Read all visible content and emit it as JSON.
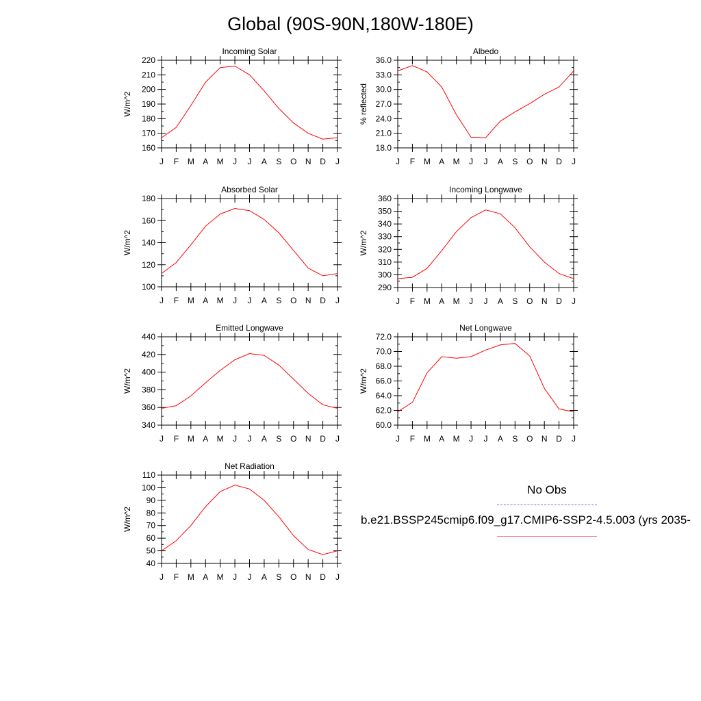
{
  "page_title": "Global (90S-90N,180W-180E)",
  "legend": {
    "title": "No Obs",
    "model_label": "b.e21.BSSP245cmip6.f09_g17.CMIP6-SSP2-4.5.003 (yrs 2035-"
  },
  "colors": {
    "series": "#ff0000",
    "obs": "#7070e0",
    "model_legend": "#f08080"
  },
  "months": [
    "J",
    "F",
    "M",
    "A",
    "M",
    "J",
    "J",
    "A",
    "S",
    "O",
    "N",
    "D",
    "J"
  ],
  "chart_data": [
    {
      "type": "line",
      "title": "Incoming Solar",
      "ylabel": "W/m^2",
      "x": [
        "J",
        "F",
        "M",
        "A",
        "M",
        "J",
        "J",
        "A",
        "S",
        "O",
        "N",
        "D",
        "J"
      ],
      "ylim": [
        160,
        220
      ],
      "yticks": [
        "160",
        "170",
        "180",
        "190",
        "200",
        "210",
        "220"
      ],
      "series": [
        {
          "values": [
            167,
            174,
            189,
            205,
            215,
            216,
            210,
            199,
            187,
            177,
            170,
            166,
            167
          ]
        }
      ]
    },
    {
      "type": "line",
      "title": "Albedo",
      "ylabel": "% reflected",
      "x": [
        "J",
        "F",
        "M",
        "A",
        "M",
        "J",
        "J",
        "A",
        "S",
        "O",
        "N",
        "D",
        "J"
      ],
      "ylim": [
        18,
        36
      ],
      "yticks": [
        "18.0",
        "21.0",
        "24.0",
        "27.0",
        "30.0",
        "33.0",
        "36.0"
      ],
      "series": [
        {
          "values": [
            33.8,
            34.9,
            33.6,
            30.5,
            24.8,
            20.2,
            20.1,
            23.5,
            25.4,
            27.1,
            29.0,
            30.5,
            33.8
          ]
        }
      ]
    },
    {
      "type": "line",
      "title": "Absorbed Solar",
      "ylabel": "W/m^2",
      "x": [
        "J",
        "F",
        "M",
        "A",
        "M",
        "J",
        "J",
        "A",
        "S",
        "O",
        "N",
        "D",
        "J"
      ],
      "ylim": [
        100,
        180
      ],
      "yticks": [
        "100",
        "120",
        "140",
        "160",
        "180"
      ],
      "series": [
        {
          "values": [
            112,
            122,
            138,
            155,
            166,
            171,
            169,
            161,
            149,
            133,
            117,
            110,
            112
          ]
        }
      ]
    },
    {
      "type": "line",
      "title": "Incoming Longwave",
      "ylabel": "W/m^2",
      "x": [
        "J",
        "F",
        "M",
        "A",
        "M",
        "J",
        "J",
        "A",
        "S",
        "O",
        "N",
        "D",
        "J"
      ],
      "ylim": [
        290,
        360
      ],
      "yticks": [
        "290",
        "300",
        "310",
        "320",
        "330",
        "340",
        "350",
        "360"
      ],
      "series": [
        {
          "values": [
            297,
            298,
            305,
            319,
            334,
            345,
            351,
            348,
            337,
            322,
            310,
            301,
            297
          ]
        }
      ]
    },
    {
      "type": "line",
      "title": "Emitted Longwave",
      "ylabel": "W/m^2",
      "x": [
        "J",
        "F",
        "M",
        "A",
        "M",
        "J",
        "J",
        "A",
        "S",
        "O",
        "N",
        "D",
        "J"
      ],
      "ylim": [
        340,
        440
      ],
      "yticks": [
        "340",
        "360",
        "380",
        "400",
        "420",
        "440"
      ],
      "series": [
        {
          "values": [
            359,
            362,
            373,
            388,
            402,
            414,
            421,
            419,
            408,
            392,
            376,
            363,
            359
          ]
        }
      ]
    },
    {
      "type": "line",
      "title": "Net Longwave",
      "ylabel": "W/m^2",
      "x": [
        "J",
        "F",
        "M",
        "A",
        "M",
        "J",
        "J",
        "A",
        "S",
        "O",
        "N",
        "D",
        "J"
      ],
      "ylim": [
        60,
        72
      ],
      "yticks": [
        "60.0",
        "62.0",
        "64.0",
        "66.0",
        "68.0",
        "70.0",
        "72.0"
      ],
      "series": [
        {
          "values": [
            61.8,
            63.1,
            67.1,
            69.3,
            69.1,
            69.3,
            70.2,
            70.9,
            71.1,
            69.4,
            65.0,
            62.2,
            61.8
          ]
        }
      ]
    },
    {
      "type": "line",
      "title": "Net Radiation",
      "ylabel": "W/m^2",
      "x": [
        "J",
        "F",
        "M",
        "A",
        "M",
        "J",
        "J",
        "A",
        "S",
        "O",
        "N",
        "D",
        "J"
      ],
      "ylim": [
        40,
        110
      ],
      "yticks": [
        "40",
        "50",
        "60",
        "70",
        "80",
        "90",
        "100",
        "110"
      ],
      "series": [
        {
          "values": [
            50,
            58,
            70,
            85,
            97,
            102,
            99,
            90,
            77,
            62,
            51,
            47,
            50
          ]
        }
      ]
    }
  ]
}
